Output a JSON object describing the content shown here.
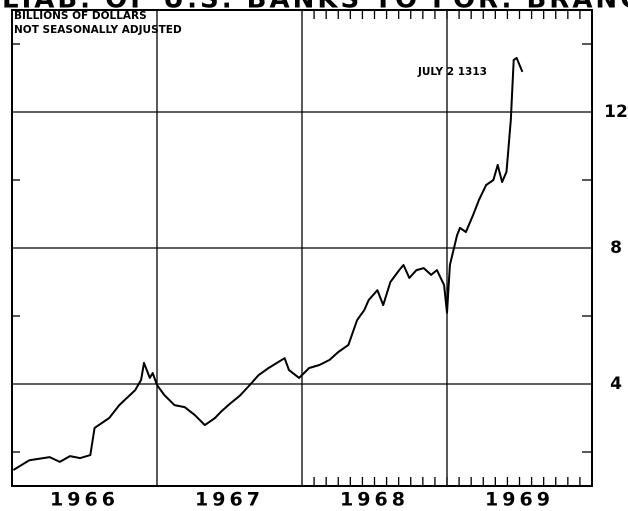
{
  "chart_data": {
    "type": "line",
    "title": "LIAB. OF U.S. BANKS TO FOR. BRANCHES",
    "y_label_lines": [
      "BILLIONS OF DOLLARS",
      "NOT SEASONALLY ADJUSTED"
    ],
    "annotation": "JULY 2 1313",
    "x": [
      1966.01,
      1966.12,
      1966.26,
      1966.33,
      1966.4,
      1966.47,
      1966.54,
      1966.57,
      1966.67,
      1966.74,
      1966.85,
      1966.89,
      1966.91,
      1966.95,
      1966.97,
      1967.0,
      1967.05,
      1967.12,
      1967.19,
      1967.26,
      1967.33,
      1967.36,
      1967.4,
      1967.44,
      1967.5,
      1967.57,
      1967.64,
      1967.7,
      1967.77,
      1967.88,
      1967.91,
      1967.98,
      1968.05,
      1968.12,
      1968.19,
      1968.25,
      1968.32,
      1968.38,
      1968.43,
      1968.46,
      1968.52,
      1968.56,
      1968.61,
      1968.67,
      1968.7,
      1968.74,
      1968.79,
      1968.84,
      1968.89,
      1968.93,
      1968.98,
      1969.0,
      1969.02,
      1969.07,
      1969.09,
      1969.13,
      1969.18,
      1969.22,
      1969.27,
      1969.32,
      1969.35,
      1969.38,
      1969.41,
      1969.44,
      1969.46,
      1969.48,
      1969.52
    ],
    "values": [
      1.47,
      1.76,
      1.85,
      1.71,
      1.88,
      1.82,
      1.91,
      2.71,
      3.0,
      3.38,
      3.82,
      4.12,
      4.62,
      4.18,
      4.32,
      3.97,
      3.68,
      3.38,
      3.32,
      3.09,
      2.79,
      2.88,
      3.0,
      3.18,
      3.41,
      3.65,
      3.97,
      4.26,
      4.47,
      4.76,
      4.41,
      4.18,
      4.47,
      4.56,
      4.71,
      4.94,
      5.15,
      5.88,
      6.18,
      6.47,
      6.76,
      6.32,
      7.0,
      7.35,
      7.5,
      7.12,
      7.35,
      7.41,
      7.21,
      7.35,
      6.91,
      6.09,
      7.5,
      8.38,
      8.59,
      8.47,
      8.97,
      9.41,
      9.85,
      10.0,
      10.44,
      9.94,
      10.24,
      11.76,
      13.53,
      13.59,
      13.18
    ],
    "color": "#000000",
    "xlim": [
      1966,
      1970
    ],
    "xticks": [
      {
        "value": 1966.5,
        "label": "1966"
      },
      {
        "value": 1967.5,
        "label": "1967"
      },
      {
        "value": 1968.5,
        "label": "1968"
      },
      {
        "value": 1969.5,
        "label": "1969"
      }
    ],
    "xgrid": [
      1967,
      1968,
      1969
    ],
    "ylim": [
      1,
      15
    ],
    "yticks": [
      4,
      8,
      12
    ],
    "yminor": [
      2,
      6,
      10,
      14
    ],
    "grid": true
  }
}
